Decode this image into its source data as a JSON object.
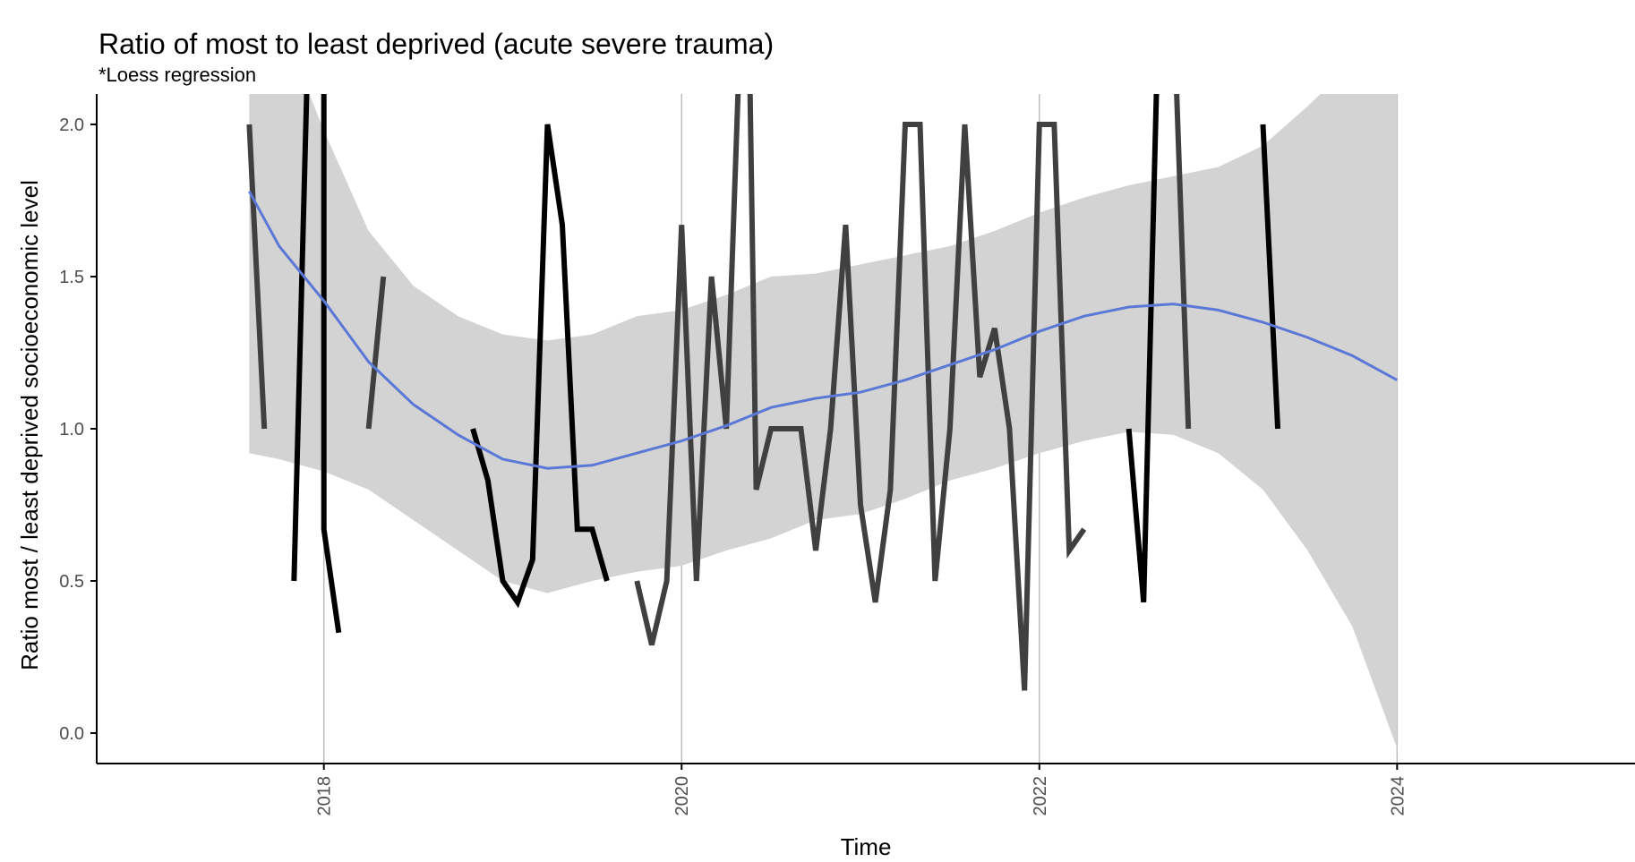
{
  "chart_data": {
    "type": "line",
    "title": "Ratio of most to least deprived (acute severe trauma)",
    "subtitle": "*Loess regression",
    "xlabel": "Time",
    "ylabel": "Ratio most / least deprived socioeconomic level",
    "xlim": [
      2016.73,
      2025.33
    ],
    "ylim": [
      -0.1,
      2.1
    ],
    "x_ticks": [
      2018,
      2020,
      2022,
      2024
    ],
    "x_tick_labels": [
      "2018",
      "2020",
      "2022",
      "2024"
    ],
    "y_ticks": [
      0.0,
      0.5,
      1.0,
      1.5,
      2.0
    ],
    "y_tick_labels": [
      "0.0",
      "0.5",
      "1.0",
      "1.5",
      "2.0"
    ],
    "grid": "vertical major lines at x ticks",
    "colors": {
      "line_dark": "#000000",
      "line_mid": "#404040",
      "loess": "#5b78d6",
      "ribbon": "#d3d3d3",
      "gridline": "#bdbdbd",
      "axis": "#000000"
    },
    "series": [
      {
        "segments": [
          [
            [
              2017.583,
              2.0
            ],
            [
              2017.667,
              1.0
            ]
          ],
          [
            [
              2017.833,
              0.5
            ],
            [
              2017.917,
              2.4
            ],
            [
              2018.0,
              2.4
            ],
            [
              2018.0,
              0.67
            ],
            [
              2018.083,
              0.33
            ]
          ],
          [
            [
              2018.25,
              1.0
            ],
            [
              2018.333,
              1.5
            ]
          ],
          [
            [
              2018.833,
              1.0
            ],
            [
              2018.917,
              0.83
            ],
            [
              2019.0,
              0.5
            ],
            [
              2019.083,
              0.43
            ],
            [
              2019.167,
              0.57
            ],
            [
              2019.25,
              2.0
            ],
            [
              2019.333,
              1.67
            ],
            [
              2019.417,
              0.67
            ],
            [
              2019.5,
              0.67
            ],
            [
              2019.583,
              0.5
            ]
          ],
          [
            [
              2019.75,
              0.5
            ],
            [
              2019.833,
              0.29
            ],
            [
              2019.917,
              0.5
            ],
            [
              2020.0,
              1.67
            ],
            [
              2020.083,
              0.5
            ],
            [
              2020.167,
              1.5
            ],
            [
              2020.25,
              1.0
            ],
            [
              2020.333,
              2.4
            ],
            [
              2020.375,
              2.4
            ],
            [
              2020.417,
              0.8
            ],
            [
              2020.5,
              1.0
            ],
            [
              2020.583,
              1.0
            ],
            [
              2020.667,
              1.0
            ],
            [
              2020.75,
              0.6
            ],
            [
              2020.833,
              1.0
            ],
            [
              2020.917,
              1.67
            ],
            [
              2021.0,
              0.75
            ],
            [
              2021.083,
              0.43
            ],
            [
              2021.167,
              0.8
            ],
            [
              2021.25,
              2.0
            ],
            [
              2021.333,
              2.0
            ],
            [
              2021.417,
              0.5
            ],
            [
              2021.5,
              1.0
            ],
            [
              2021.583,
              2.0
            ],
            [
              2021.667,
              1.17
            ],
            [
              2021.75,
              1.33
            ],
            [
              2021.833,
              1.0
            ],
            [
              2021.917,
              0.14
            ],
            [
              2022.0,
              2.0
            ],
            [
              2022.083,
              2.0
            ],
            [
              2022.167,
              0.6
            ],
            [
              2022.25,
              0.67
            ]
          ],
          [
            [
              2022.5,
              1.0
            ],
            [
              2022.583,
              0.43
            ],
            [
              2022.667,
              2.4
            ]
          ],
          [
            [
              2022.75,
              2.4
            ],
            [
              2022.833,
              1.0
            ]
          ],
          [
            [
              2023.25,
              2.0
            ],
            [
              2023.333,
              1.0
            ]
          ]
        ]
      }
    ],
    "loess": {
      "x": [
        2017.583,
        2017.75,
        2018.0,
        2018.25,
        2018.5,
        2018.75,
        2019.0,
        2019.25,
        2019.5,
        2019.75,
        2020.0,
        2020.25,
        2020.5,
        2020.75,
        2021.0,
        2021.25,
        2021.5,
        2021.75,
        2022.0,
        2022.25,
        2022.5,
        2022.75,
        2023.0,
        2023.25,
        2023.5,
        2023.75,
        2024.0
      ],
      "y": [
        1.78,
        1.6,
        1.42,
        1.22,
        1.08,
        0.98,
        0.9,
        0.87,
        0.88,
        0.92,
        0.96,
        1.01,
        1.07,
        1.1,
        1.12,
        1.16,
        1.21,
        1.26,
        1.32,
        1.37,
        1.4,
        1.41,
        1.39,
        1.35,
        1.3,
        1.24,
        1.16
      ],
      "lower": [
        0.92,
        0.9,
        0.86,
        0.8,
        0.7,
        0.6,
        0.5,
        0.46,
        0.5,
        0.53,
        0.55,
        0.6,
        0.64,
        0.7,
        0.72,
        0.77,
        0.83,
        0.87,
        0.92,
        0.96,
        0.99,
        0.98,
        0.92,
        0.8,
        0.6,
        0.35,
        -0.05
      ],
      "upper": [
        2.5,
        2.35,
        1.98,
        1.65,
        1.47,
        1.37,
        1.31,
        1.29,
        1.31,
        1.37,
        1.39,
        1.44,
        1.5,
        1.51,
        1.54,
        1.57,
        1.6,
        1.65,
        1.71,
        1.76,
        1.8,
        1.83,
        1.86,
        1.93,
        2.06,
        2.2,
        2.4
      ]
    }
  }
}
